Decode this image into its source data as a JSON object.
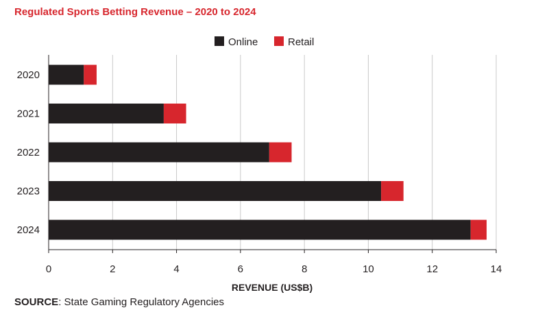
{
  "chart_data": {
    "type": "bar",
    "orientation": "horizontal",
    "stacked": true,
    "title": "Regulated Sports Betting Revenue – 2020 to 2024",
    "xlabel": "REVENUE (US$B)",
    "ylabel": "",
    "categories": [
      "2020",
      "2021",
      "2022",
      "2023",
      "2024"
    ],
    "series": [
      {
        "name": "Online",
        "color": "#231f20",
        "values": [
          1.1,
          3.6,
          6.9,
          10.4,
          13.2
        ]
      },
      {
        "name": "Retail",
        "color": "#d7262d",
        "values": [
          0.4,
          0.7,
          0.7,
          0.7,
          0.5
        ]
      }
    ],
    "xlim": [
      0,
      14
    ],
    "xticks": [
      0,
      2,
      4,
      6,
      8,
      10,
      12,
      14
    ],
    "grid": "vertical",
    "legend_position": "top-right"
  },
  "source": {
    "label": "SOURCE",
    "text": ": State Gaming Regulatory Agencies"
  }
}
